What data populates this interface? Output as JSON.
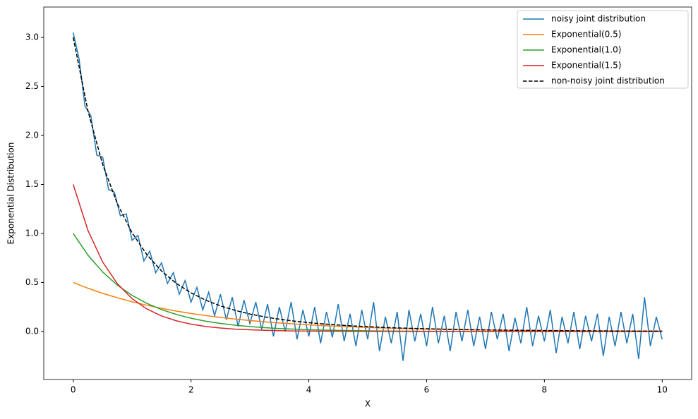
{
  "chart_data": {
    "type": "line",
    "xlabel": "X",
    "ylabel": "Exponential Distribution",
    "xlim": [
      -0.5,
      10.5
    ],
    "ylim": [
      -0.49,
      3.31
    ],
    "xticks": [
      0,
      2,
      4,
      6,
      8,
      10
    ],
    "yticks": [
      {
        "value": 0,
        "label": "0.0"
      },
      0.5,
      {
        "value": 1,
        "label": "1.0"
      },
      1.5,
      {
        "value": 2,
        "label": "2.0"
      },
      2.5,
      {
        "value": 3,
        "label": "3.0"
      }
    ],
    "legend": "upper right",
    "x": [
      0,
      0.25,
      0.5,
      0.75,
      1,
      1.25,
      1.5,
      1.75,
      2,
      2.25,
      2.5,
      2.75,
      3,
      3.25,
      3.5,
      3.75,
      4,
      4.25,
      4.5,
      4.75,
      5,
      5.25,
      5.5,
      5.75,
      6,
      6.25,
      6.5,
      6.75,
      7,
      7.25,
      7.5,
      7.75,
      8,
      8.25,
      8.5,
      8.75,
      9,
      9.25,
      9.5,
      9.75,
      10
    ],
    "series": [
      {
        "name": "noisy joint distribution",
        "color": "#1f77b4",
        "linestyle": "solid",
        "x": [
          0,
          0.1,
          0.2,
          0.3,
          0.4,
          0.5,
          0.6,
          0.7,
          0.8,
          0.9,
          1,
          1.1,
          1.2,
          1.3,
          1.4,
          1.5,
          1.6,
          1.7,
          1.8,
          1.9,
          2,
          2.1,
          2.2,
          2.3,
          2.4,
          2.5,
          2.6,
          2.7,
          2.8,
          2.9,
          3,
          3.1,
          3.2,
          3.3,
          3.4,
          3.5,
          3.6,
          3.7,
          3.8,
          3.9,
          4,
          4.1,
          4.2,
          4.3,
          4.4,
          4.5,
          4.6,
          4.7,
          4.8,
          4.9,
          5,
          5.1,
          5.2,
          5.3,
          5.4,
          5.5,
          5.6,
          5.7,
          5.8,
          5.9,
          6,
          6.1,
          6.2,
          6.3,
          6.4,
          6.5,
          6.6,
          6.7,
          6.8,
          6.9,
          7,
          7.1,
          7.2,
          7.3,
          7.4,
          7.5,
          7.6,
          7.7,
          7.8,
          7.9,
          8,
          8.1,
          8.2,
          8.3,
          8.4,
          8.5,
          8.6,
          8.7,
          8.8,
          8.9,
          9,
          9.1,
          9.2,
          9.3,
          9.4,
          9.5,
          9.6,
          9.7,
          9.8,
          9.9,
          10
        ],
        "values": [
          3.05,
          2.78,
          2.3,
          2.2,
          1.8,
          1.78,
          1.45,
          1.42,
          1.18,
          1.2,
          0.93,
          0.98,
          0.72,
          0.82,
          0.6,
          0.7,
          0.49,
          0.6,
          0.38,
          0.52,
          0.3,
          0.45,
          0.22,
          0.4,
          0.16,
          0.38,
          0.12,
          0.35,
          0.05,
          0.32,
          0.08,
          0.3,
          0.02,
          0.28,
          -0.05,
          0.25,
          0.0,
          0.3,
          -0.08,
          0.22,
          -0.05,
          0.25,
          -0.12,
          0.2,
          -0.06,
          0.28,
          -0.1,
          0.18,
          -0.15,
          0.22,
          -0.08,
          0.3,
          -0.2,
          0.15,
          -0.12,
          0.2,
          -0.3,
          0.22,
          -0.1,
          0.18,
          -0.15,
          0.25,
          -0.12,
          0.16,
          -0.2,
          0.2,
          -0.1,
          0.22,
          -0.15,
          0.15,
          -0.18,
          0.2,
          -0.08,
          0.18,
          -0.2,
          0.14,
          -0.12,
          0.25,
          -0.15,
          0.16,
          -0.1,
          0.22,
          -0.22,
          0.15,
          -0.12,
          0.2,
          -0.18,
          0.16,
          -0.1,
          0.18,
          -0.25,
          0.15,
          -0.15,
          0.2,
          -0.12,
          0.18,
          -0.28,
          0.35,
          -0.15,
          0.15,
          -0.08
        ]
      },
      {
        "name": "Exponential(0.5)",
        "color": "#ff7f0e",
        "linestyle": "solid",
        "values": [
          0.5,
          0.441,
          0.389,
          0.344,
          0.303,
          0.268,
          0.236,
          0.208,
          0.184,
          0.162,
          0.143,
          0.126,
          0.112,
          0.098,
          0.087,
          0.077,
          0.068,
          0.06,
          0.053,
          0.047,
          0.041,
          0.036,
          0.032,
          0.028,
          0.025,
          0.022,
          0.019,
          0.017,
          0.015,
          0.013,
          0.012,
          0.01,
          0.009,
          0.008,
          0.007,
          0.006,
          0.006,
          0.005,
          0.004,
          0.004,
          0.003
        ]
      },
      {
        "name": "Exponential(1.0)",
        "color": "#2ca02c",
        "linestyle": "solid",
        "values": [
          1,
          0.779,
          0.607,
          0.472,
          0.368,
          0.287,
          0.223,
          0.174,
          0.135,
          0.105,
          0.082,
          0.064,
          0.05,
          0.039,
          0.03,
          0.024,
          0.018,
          0.014,
          0.011,
          0.009,
          0.007,
          0.005,
          0.004,
          0.003,
          0.002,
          0.002,
          0.002,
          0.001,
          0.001,
          0.001,
          0.001,
          0,
          0,
          0,
          0,
          0,
          0,
          0,
          0,
          0,
          0
        ]
      },
      {
        "name": "Exponential(1.5)",
        "color": "#d62728",
        "linestyle": "solid",
        "values": [
          1.5,
          1.031,
          0.709,
          0.487,
          0.335,
          0.23,
          0.158,
          0.109,
          0.075,
          0.051,
          0.035,
          0.024,
          0.017,
          0.012,
          0.008,
          0.005,
          0.004,
          0.003,
          0.002,
          0.001,
          0.001,
          0.001,
          0,
          0,
          0,
          0,
          0,
          0,
          0,
          0,
          0,
          0,
          0,
          0,
          0,
          0,
          0,
          0,
          0,
          0,
          0
        ]
      },
      {
        "name": "non-noisy joint distribution",
        "color": "#000000",
        "linestyle": "dashed",
        "values": [
          3,
          2.251,
          1.704,
          1.303,
          1.006,
          0.784,
          0.617,
          0.491,
          0.394,
          0.319,
          0.261,
          0.215,
          0.178,
          0.149,
          0.125,
          0.106,
          0.09,
          0.077,
          0.066,
          0.056,
          0.049,
          0.042,
          0.036,
          0.032,
          0.028,
          0.024,
          0.021,
          0.018,
          0.016,
          0.014,
          0.012,
          0.011,
          0.0095,
          0.0084,
          0.0073,
          0.0065,
          0.0057,
          0.005,
          0.0044,
          0.0039,
          0.0034
        ]
      }
    ]
  }
}
